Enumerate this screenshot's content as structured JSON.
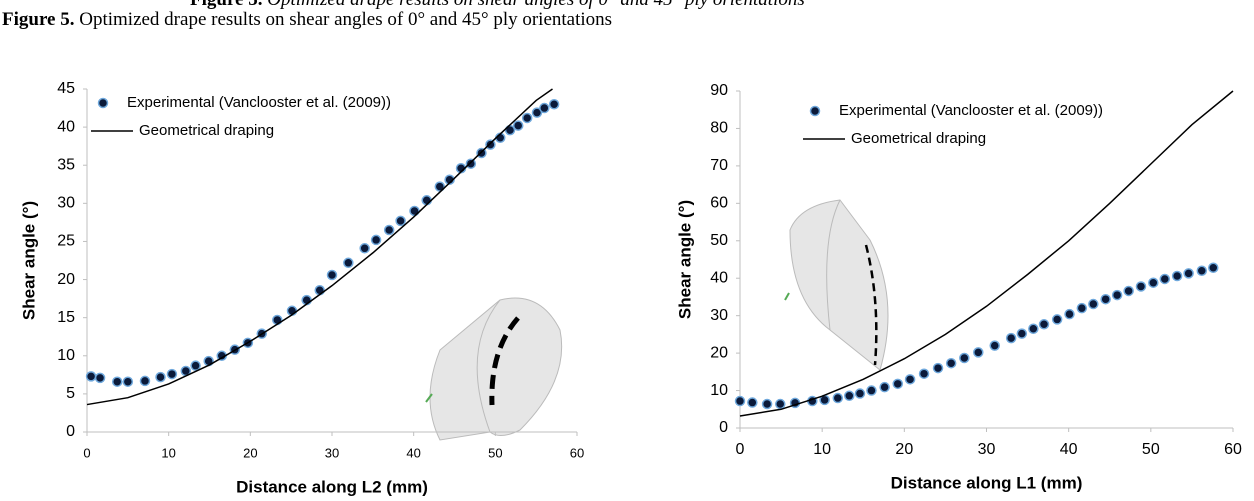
{
  "caption": {
    "label": "Figure 5.",
    "text": "Optimized drape results on shear angles of 0° and 45° ply orientations"
  },
  "chart_data": [
    {
      "type": "scatter",
      "legend": "upper left",
      "xlabel": "Distance  along L2 (mm)",
      "ylabel": "Shear angle (°)",
      "xlim": [
        0,
        60
      ],
      "xticks": [
        0,
        10,
        20,
        30,
        40,
        50,
        60
      ],
      "ylim": [
        0,
        45
      ],
      "yticks": [
        0,
        5,
        10,
        15,
        20,
        25,
        30,
        35,
        40,
        45
      ],
      "series": [
        {
          "name": "Experimental (Vanclooster et al. (2009))",
          "style": "markers",
          "color": "#0b1a3a",
          "x": [
            0.5,
            1.6,
            3.7,
            5,
            7.1,
            9,
            10.4,
            12.1,
            13.3,
            14.9,
            16.5,
            18.1,
            19.7,
            21.4,
            23.3,
            25.1,
            26.9,
            28.5,
            30,
            32,
            34,
            35.4,
            37,
            38.4,
            40.1,
            41.6,
            43.2,
            44.4,
            45.8,
            47,
            48.3,
            49.4,
            50.6,
            51.8,
            52.8,
            53.9,
            55.1,
            56,
            57.2
          ],
          "values": [
            7.3,
            7.1,
            6.6,
            6.6,
            6.7,
            7.2,
            7.6,
            8,
            8.7,
            9.3,
            10,
            10.8,
            11.7,
            12.9,
            14.7,
            15.9,
            17.3,
            18.6,
            20.6,
            22.2,
            24.1,
            25.2,
            26.5,
            27.7,
            29,
            30.4,
            32.2,
            33.1,
            34.6,
            35.2,
            36.6,
            37.7,
            38.6,
            39.6,
            40.2,
            41.2,
            41.9,
            42.5,
            43
          ]
        },
        {
          "name": "Geometrical draping",
          "style": "line",
          "color": "#000000",
          "x": [
            0,
            5,
            10,
            15,
            20,
            25,
            30,
            35,
            40,
            45,
            50,
            55,
            57
          ],
          "values": [
            3.6,
            4.5,
            6.3,
            8.8,
            11.9,
            15.3,
            19.2,
            23.5,
            28.2,
            33.3,
            38.5,
            43.5,
            45
          ]
        }
      ]
    },
    {
      "type": "scatter",
      "legend": "upper left",
      "xlabel": "Distance along L1 (mm)",
      "ylabel": "Shear angle (°)",
      "xlim": [
        0,
        60
      ],
      "xticks": [
        0,
        10,
        20,
        30,
        40,
        50,
        60
      ],
      "ylim": [
        0,
        90
      ],
      "yticks": [
        0,
        10,
        20,
        30,
        40,
        50,
        60,
        70,
        80,
        90
      ],
      "series": [
        {
          "name": "Experimental (Vanclooster et al. (2009))",
          "style": "markers",
          "color": "#0b1a3a",
          "x": [
            0,
            1.5,
            3.3,
            4.9,
            6.7,
            8.8,
            10.3,
            11.9,
            13.3,
            14.6,
            16,
            17.6,
            19.2,
            20.7,
            22.4,
            24.1,
            25.7,
            27.3,
            29,
            31,
            33,
            34.3,
            35.7,
            37,
            38.6,
            40.1,
            41.6,
            43,
            44.5,
            45.9,
            47.3,
            48.8,
            50.3,
            51.7,
            53.2,
            54.6,
            56.2,
            57.6
          ],
          "values": [
            7.2,
            6.8,
            6.4,
            6.4,
            6.7,
            7.2,
            7.5,
            8,
            8.6,
            9.2,
            10,
            10.9,
            11.8,
            13,
            14.5,
            16,
            17.3,
            18.7,
            20.2,
            22,
            24,
            25.2,
            26.5,
            27.7,
            29,
            30.4,
            32,
            33.1,
            34.4,
            35.5,
            36.6,
            37.8,
            38.8,
            39.8,
            40.6,
            41.3,
            42,
            42.8
          ]
        },
        {
          "name": "Geometrical draping",
          "style": "line",
          "color": "#000000",
          "x": [
            0,
            5,
            10,
            15,
            20,
            25,
            30,
            35,
            40,
            45,
            50,
            55,
            60
          ],
          "values": [
            3.2,
            5,
            8.5,
            13,
            18.5,
            25,
            32.5,
            41,
            50,
            60,
            70.5,
            81,
            90
          ]
        }
      ]
    }
  ]
}
